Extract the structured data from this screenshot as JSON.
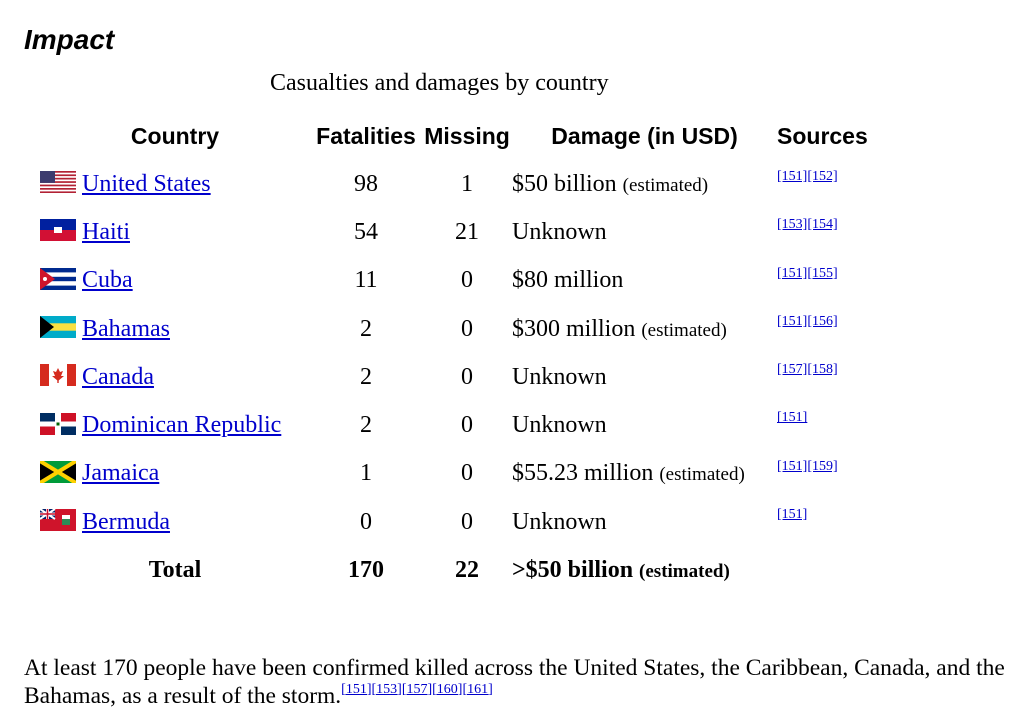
{
  "section_title": "Impact",
  "table": {
    "caption": "Casualties and damages by country",
    "headers": {
      "country": "Country",
      "fatalities": "Fatalities",
      "missing": "Missing",
      "damage": "Damage (in USD)",
      "sources": "Sources"
    },
    "rows": [
      {
        "flag": "us-flag-icon",
        "country": "United States",
        "fatalities": "98",
        "missing": "1",
        "damage": "$50 billion",
        "damage_note": "(estimated)",
        "sources": "[151][152]"
      },
      {
        "flag": "haiti-flag-icon",
        "country": "Haiti",
        "fatalities": "54",
        "missing": "21",
        "damage": "Unknown",
        "damage_note": "",
        "sources": "[153][154]"
      },
      {
        "flag": "cuba-flag-icon",
        "country": "Cuba",
        "fatalities": "11",
        "missing": "0",
        "damage": "$80 million",
        "damage_note": "",
        "sources": "[151][155]"
      },
      {
        "flag": "bahamas-flag-icon",
        "country": "Bahamas",
        "fatalities": "2",
        "missing": "0",
        "damage": "$300 million",
        "damage_note": "(estimated)",
        "sources": "[151][156]"
      },
      {
        "flag": "canada-flag-icon",
        "country": "Canada",
        "fatalities": "2",
        "missing": "0",
        "damage": "Unknown",
        "damage_note": "",
        "sources": "[157][158]"
      },
      {
        "flag": "dominican-republic-flag-icon",
        "country": "Dominican Republic",
        "fatalities": "2",
        "missing": "0",
        "damage": "Unknown",
        "damage_note": "",
        "sources": "[151]"
      },
      {
        "flag": "jamaica-flag-icon",
        "country": "Jamaica",
        "fatalities": "1",
        "missing": "0",
        "damage": "$55.23 million",
        "damage_note": "(estimated)",
        "sources": "[151][159]"
      },
      {
        "flag": "bermuda-flag-icon",
        "country": "Bermuda",
        "fatalities": "0",
        "missing": "0",
        "damage": "Unknown",
        "damage_note": "",
        "sources": "[151]"
      }
    ],
    "total": {
      "label": "Total",
      "fatalities": "170",
      "missing": "22",
      "damage": ">$50 billion",
      "damage_note": "(estimated)"
    }
  },
  "paragraph": {
    "text": "At least 170 people have been confirmed killed across the United States, the Caribbean, Canada, and the Bahamas, as a result of the storm.",
    "refs": "[151][153][157][160][161]"
  },
  "colors": {
    "link": "#0000cc"
  }
}
